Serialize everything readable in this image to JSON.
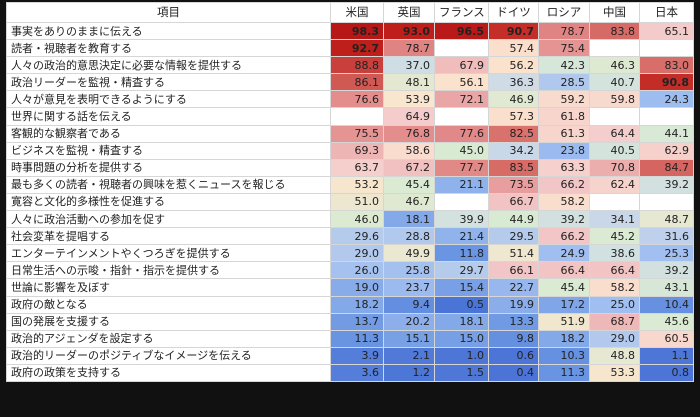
{
  "chart_data": {
    "type": "heatmap",
    "title": "",
    "row_header": "項目",
    "columns": [
      "米国",
      "英国",
      "フランス",
      "ドイツ",
      "ロシア",
      "中国",
      "日本"
    ],
    "rows": [
      {
        "label": "事実をありのままに伝える",
        "values": [
          98.3,
          93.0,
          96.5,
          90.7,
          78.7,
          83.8,
          65.1
        ]
      },
      {
        "label": "読者・視聴者を教育する",
        "values": [
          92.7,
          78.7,
          null,
          57.4,
          75.4,
          null,
          null
        ]
      },
      {
        "label": "人々の政治的意思決定に必要な情報を提供する",
        "values": [
          88.8,
          37.0,
          67.9,
          56.2,
          42.3,
          46.3,
          83.0
        ]
      },
      {
        "label": "政治リーダーを監視・精査する",
        "values": [
          86.1,
          48.1,
          56.1,
          36.3,
          28.5,
          40.7,
          90.8
        ]
      },
      {
        "label": "人々が意見を表明できるようにする",
        "values": [
          76.6,
          53.9,
          72.1,
          46.9,
          59.2,
          59.8,
          24.3
        ]
      },
      {
        "label": "世界に関する話を伝える",
        "values": [
          null,
          64.9,
          null,
          57.3,
          61.8,
          null,
          null
        ]
      },
      {
        "label": "客観的な観察者である",
        "values": [
          75.5,
          76.8,
          77.6,
          82.5,
          61.3,
          64.4,
          44.1
        ]
      },
      {
        "label": "ビジネスを監視・精査する",
        "values": [
          69.3,
          58.6,
          45.0,
          34.2,
          23.8,
          40.5,
          62.9
        ]
      },
      {
        "label": "時事問題の分析を提供する",
        "values": [
          63.7,
          67.2,
          77.7,
          83.5,
          63.3,
          70.8,
          84.7
        ]
      },
      {
        "label": "最も多くの読者・視聴者の興味を惹くニュースを報じる",
        "values": [
          53.2,
          45.4,
          21.1,
          73.5,
          66.2,
          62.4,
          39.2
        ]
      },
      {
        "label": "寛容と文化的多様性を促進する",
        "values": [
          51.0,
          46.7,
          null,
          66.7,
          58.2,
          null,
          null
        ]
      },
      {
        "label": "人々に政治活動への参加を促す",
        "values": [
          46.0,
          18.1,
          39.9,
          44.9,
          39.2,
          34.1,
          48.7
        ]
      },
      {
        "label": "社会変革を提唱する",
        "values": [
          29.6,
          28.8,
          21.4,
          29.5,
          66.2,
          45.2,
          31.6
        ]
      },
      {
        "label": "エンターテインメントやくつろぎを提供する",
        "values": [
          29.0,
          49.9,
          11.8,
          51.4,
          24.9,
          38.6,
          25.3
        ]
      },
      {
        "label": "日常生活への示唆・指針・指示を提供する",
        "values": [
          26.0,
          25.8,
          29.7,
          66.1,
          66.4,
          66.4,
          39.2
        ]
      },
      {
        "label": "世論に影響を及ぼす",
        "values": [
          19.0,
          23.7,
          15.4,
          22.7,
          45.4,
          58.2,
          43.1
        ]
      },
      {
        "label": "政府の敵となる",
        "values": [
          18.2,
          9.4,
          0.5,
          19.9,
          17.2,
          25.0,
          10.4
        ]
      },
      {
        "label": "国の発展を支援する",
        "values": [
          13.7,
          20.2,
          18.1,
          13.3,
          51.9,
          68.7,
          45.6
        ]
      },
      {
        "label": "政治的アジェンダを設定する",
        "values": [
          11.3,
          15.1,
          15.0,
          9.8,
          18.2,
          29.0,
          60.5
        ]
      },
      {
        "label": "政治的リーダーのポジティブなイメージを伝える",
        "values": [
          3.9,
          2.1,
          1.0,
          0.6,
          10.3,
          48.8,
          1.1
        ]
      },
      {
        "label": "政府の政策を支持する",
        "values": [
          3.6,
          1.2,
          1.5,
          0.4,
          11.3,
          53.3,
          0.8
        ]
      }
    ]
  }
}
